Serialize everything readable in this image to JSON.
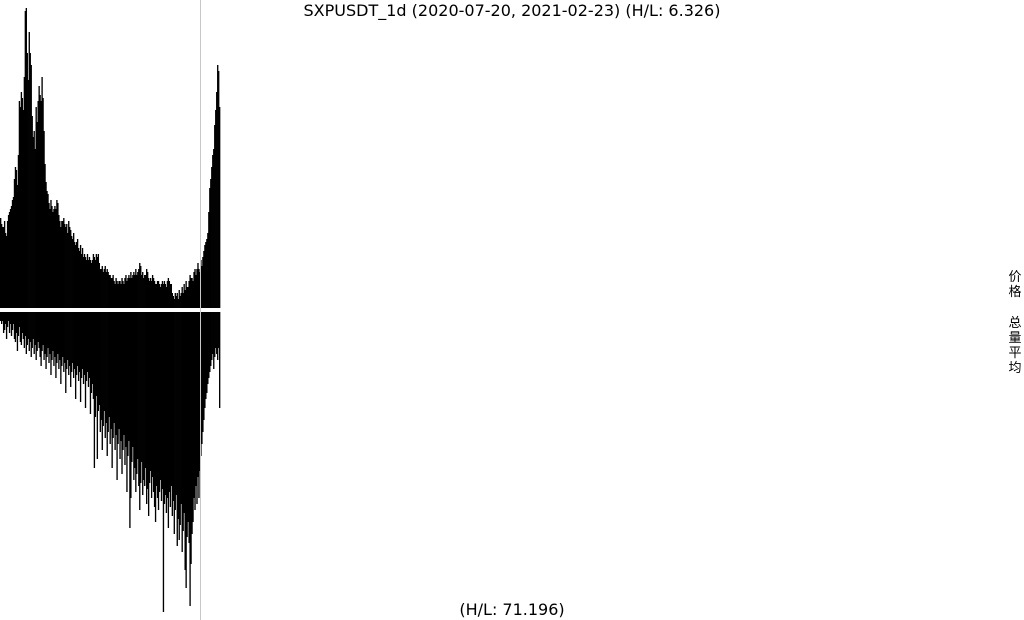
{
  "chart_data": {
    "type": "bar",
    "title": "SXPUSDT_1d (2020-07-20, 2021-02-23) (H/L: 6.326)",
    "bottom_label": "(H/L: 71.196)",
    "side_labels": {
      "price": "价格",
      "volume": "总量平均"
    },
    "colors": {
      "bars": "#000000",
      "background": "#ffffff",
      "guide": "#c8c8c8"
    },
    "x_range": [
      "2020-07-20",
      "2021-02-23"
    ],
    "price_hl_ratio": 6.326,
    "volume_hl_ratio": 71.196,
    "series": [
      {
        "name": "价格",
        "values": [
          0.3,
          0.28,
          0.27,
          0.27,
          0.29,
          0.25,
          0.24,
          0.29,
          0.31,
          0.32,
          0.33,
          0.34,
          0.36,
          0.37,
          0.43,
          0.47,
          0.46,
          0.41,
          0.51,
          0.69,
          0.67,
          0.72,
          0.7,
          0.66,
          0.77,
          0.99,
          1.0,
          0.85,
          0.76,
          0.92,
          0.85,
          0.81,
          0.64,
          0.57,
          0.59,
          0.53,
          0.67,
          0.62,
          0.69,
          0.74,
          0.71,
          0.69,
          0.77,
          0.7,
          0.59,
          0.48,
          0.42,
          0.39,
          0.38,
          0.35,
          0.33,
          0.36,
          0.34,
          0.32,
          0.33,
          0.34,
          0.33,
          0.36,
          0.35,
          0.31,
          0.29,
          0.27,
          0.29,
          0.29,
          0.3,
          0.28,
          0.27,
          0.28,
          0.25,
          0.29,
          0.27,
          0.26,
          0.24,
          0.23,
          0.25,
          0.22,
          0.21,
          0.22,
          0.23,
          0.2,
          0.19,
          0.21,
          0.18,
          0.2,
          0.17,
          0.18,
          0.17,
          0.16,
          0.18,
          0.16,
          0.17,
          0.16,
          0.15,
          0.16,
          0.18,
          0.17,
          0.16,
          0.18,
          0.17,
          0.18,
          0.15,
          0.13,
          0.13,
          0.14,
          0.12,
          0.13,
          0.14,
          0.12,
          0.13,
          0.12,
          0.11,
          0.11,
          0.1,
          0.1,
          0.11,
          0.09,
          0.08,
          0.1,
          0.09,
          0.08,
          0.09,
          0.09,
          0.08,
          0.1,
          0.09,
          0.08,
          0.1,
          0.11,
          0.09,
          0.1,
          0.11,
          0.1,
          0.12,
          0.1,
          0.11,
          0.12,
          0.11,
          0.13,
          0.11,
          0.12,
          0.13,
          0.15,
          0.14,
          0.11,
          0.12,
          0.1,
          0.11,
          0.11,
          0.13,
          0.12,
          0.1,
          0.09,
          0.1,
          0.09,
          0.11,
          0.1,
          0.09,
          0.08,
          0.08,
          0.09,
          0.09,
          0.08,
          0.07,
          0.08,
          0.09,
          0.08,
          0.09,
          0.08,
          0.07,
          0.09,
          0.1,
          0.09,
          0.08,
          0.08,
          0.05,
          0.04,
          0.03,
          0.05,
          0.04,
          0.05,
          0.03,
          0.06,
          0.04,
          0.05,
          0.07,
          0.05,
          0.08,
          0.06,
          0.09,
          0.07,
          0.07,
          0.09,
          0.11,
          0.1,
          0.1,
          0.09,
          0.12,
          0.13,
          0.11,
          0.13,
          0.15,
          0.13,
          0.12,
          0.16,
          0.14,
          0.17,
          0.19,
          0.21,
          0.22,
          0.23,
          0.25,
          0.32,
          0.4,
          0.43,
          0.47,
          0.51,
          0.53,
          0.61,
          0.66,
          0.72,
          0.81,
          0.79,
          0.67
        ]
      },
      {
        "name": "总量平均",
        "values": [
          0.03,
          0.04,
          0.03,
          0.07,
          0.06,
          0.04,
          0.09,
          0.05,
          0.03,
          0.07,
          0.04,
          0.08,
          0.06,
          0.04,
          0.09,
          0.1,
          0.07,
          0.13,
          0.08,
          0.05,
          0.1,
          0.11,
          0.07,
          0.09,
          0.12,
          0.08,
          0.14,
          0.11,
          0.09,
          0.13,
          0.1,
          0.15,
          0.12,
          0.09,
          0.14,
          0.11,
          0.16,
          0.13,
          0.1,
          0.12,
          0.15,
          0.18,
          0.13,
          0.11,
          0.16,
          0.14,
          0.19,
          0.15,
          0.12,
          0.17,
          0.14,
          0.21,
          0.16,
          0.13,
          0.18,
          0.15,
          0.22,
          0.17,
          0.14,
          0.19,
          0.16,
          0.24,
          0.18,
          0.15,
          0.2,
          0.17,
          0.27,
          0.19,
          0.16,
          0.21,
          0.18,
          0.25,
          0.2,
          0.17,
          0.22,
          0.19,
          0.29,
          0.21,
          0.18,
          0.23,
          0.2,
          0.3,
          0.22,
          0.19,
          0.24,
          0.21,
          0.32,
          0.23,
          0.2,
          0.25,
          0.22,
          0.34,
          0.27,
          0.24,
          0.29,
          0.52,
          0.35,
          0.28,
          0.49,
          0.33,
          0.31,
          0.4,
          0.36,
          0.46,
          0.38,
          0.33,
          0.42,
          0.37,
          0.48,
          0.4,
          0.35,
          0.44,
          0.39,
          0.52,
          0.42,
          0.37,
          0.46,
          0.41,
          0.56,
          0.44,
          0.39,
          0.49,
          0.43,
          0.54,
          0.46,
          0.41,
          0.51,
          0.45,
          0.6,
          0.48,
          0.43,
          0.72,
          0.62,
          0.5,
          0.45,
          0.56,
          0.52,
          0.6,
          0.54,
          0.49,
          0.58,
          0.66,
          0.57,
          0.5,
          0.61,
          0.56,
          0.58,
          0.52,
          0.64,
          0.59,
          0.68,
          0.57,
          0.53,
          0.62,
          0.55,
          0.6,
          0.65,
          0.7,
          0.58,
          0.62,
          0.66,
          0.6,
          0.56,
          0.63,
          0.59,
          1.0,
          0.64,
          0.61,
          0.67,
          0.62,
          0.72,
          0.6,
          0.65,
          0.58,
          0.68,
          0.63,
          0.74,
          0.66,
          0.61,
          0.78,
          0.69,
          0.76,
          0.71,
          0.64,
          0.8,
          0.73,
          0.67,
          0.86,
          0.92,
          0.75,
          0.7,
          0.77,
          0.98,
          0.84,
          0.74,
          0.7,
          0.62,
          0.66,
          0.58,
          0.64,
          0.55,
          0.62,
          0.53,
          0.48,
          0.44,
          0.4,
          0.36,
          0.32,
          0.29,
          0.27,
          0.24,
          0.22,
          0.2,
          0.18,
          0.16,
          0.14,
          0.19,
          0.15,
          0.12,
          0.14,
          0.16,
          0.12,
          0.32
        ]
      }
    ],
    "grid": false,
    "legend": "none"
  }
}
